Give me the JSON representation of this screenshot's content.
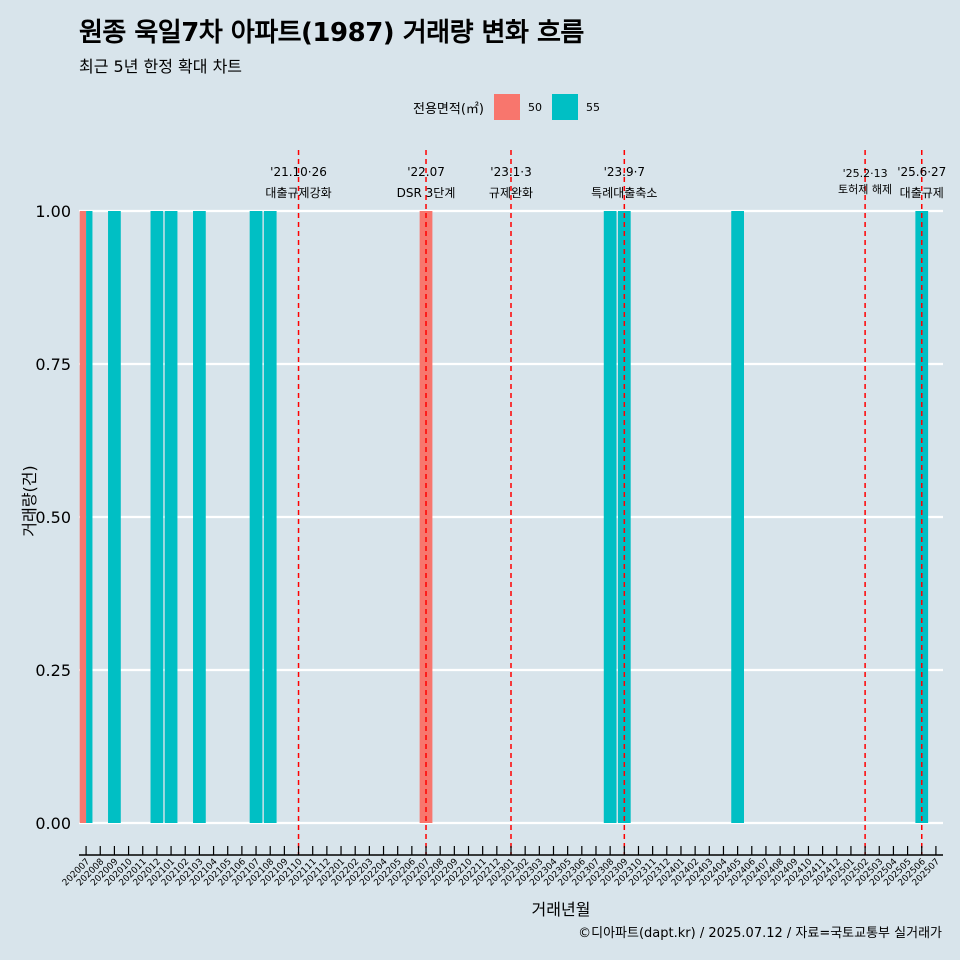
{
  "title": "원종 욱일7차 아파트(1987) 거래량 변화 흐름",
  "subtitle": "최근 5년 한정 확대 차트",
  "legend": {
    "title": "전용면적(㎡)",
    "entries": [
      {
        "label": "50",
        "color": "#F8766D"
      },
      {
        "label": "55",
        "color": "#00BFC4"
      }
    ]
  },
  "caption": "©디아파트(dapt.kr) / 2025.07.12 / 자료=국토교통부 실거래가",
  "chart_data": {
    "type": "bar",
    "stacked": false,
    "dodge": true,
    "xlabel": "거래년월",
    "ylabel": "거래량(건)",
    "ylim": [
      0,
      1
    ],
    "yticks": [
      "0.00",
      "0.25",
      "0.50",
      "0.75",
      "1.00"
    ],
    "grid": "horizontal",
    "legend_position": "top",
    "categories": [
      "202007",
      "202008",
      "202009",
      "202010",
      "202011",
      "202012",
      "202101",
      "202102",
      "202103",
      "202104",
      "202105",
      "202106",
      "202107",
      "202108",
      "202109",
      "202110",
      "202111",
      "202112",
      "202201",
      "202202",
      "202203",
      "202204",
      "202205",
      "202206",
      "202207",
      "202208",
      "202209",
      "202210",
      "202211",
      "202212",
      "202301",
      "202302",
      "202303",
      "202304",
      "202305",
      "202306",
      "202307",
      "202308",
      "202309",
      "202310",
      "202311",
      "202312",
      "202401",
      "202402",
      "202403",
      "202404",
      "202405",
      "202406",
      "202407",
      "202408",
      "202409",
      "202410",
      "202411",
      "202412",
      "202501",
      "202502",
      "202503",
      "202504",
      "202505",
      "202506",
      "202507"
    ],
    "bars": [
      {
        "x": "202007",
        "series": "50",
        "value": 1
      },
      {
        "x": "202007",
        "series": "55",
        "value": 1
      },
      {
        "x": "202009",
        "series": "55",
        "value": 1
      },
      {
        "x": "202012",
        "series": "55",
        "value": 1
      },
      {
        "x": "202101",
        "series": "55",
        "value": 1
      },
      {
        "x": "202103",
        "series": "55",
        "value": 1
      },
      {
        "x": "202107",
        "series": "55",
        "value": 1
      },
      {
        "x": "202108",
        "series": "55",
        "value": 1
      },
      {
        "x": "202207",
        "series": "50",
        "value": 1
      },
      {
        "x": "202308",
        "series": "55",
        "value": 1
      },
      {
        "x": "202309",
        "series": "55",
        "value": 1
      },
      {
        "x": "202405",
        "series": "55",
        "value": 1
      },
      {
        "x": "202506",
        "series": "55",
        "value": 1
      }
    ],
    "annotations": [
      {
        "x": "202110",
        "date": "'21.10·26",
        "text": "대출규제강화"
      },
      {
        "x": "202207",
        "date": "'22.07",
        "text": "DSR 3단계"
      },
      {
        "x": "202301",
        "date": "'23.1·3",
        "text": "규제완화"
      },
      {
        "x": "202309",
        "date": "'23.9·7",
        "text": "특례대출축소"
      },
      {
        "x": "202502",
        "date": "'25.2·13",
        "text": "토허제 해제"
      },
      {
        "x": "202506",
        "date": "'25.6·27",
        "text": "대출규제"
      }
    ],
    "annotation_color": "#FF0000"
  }
}
